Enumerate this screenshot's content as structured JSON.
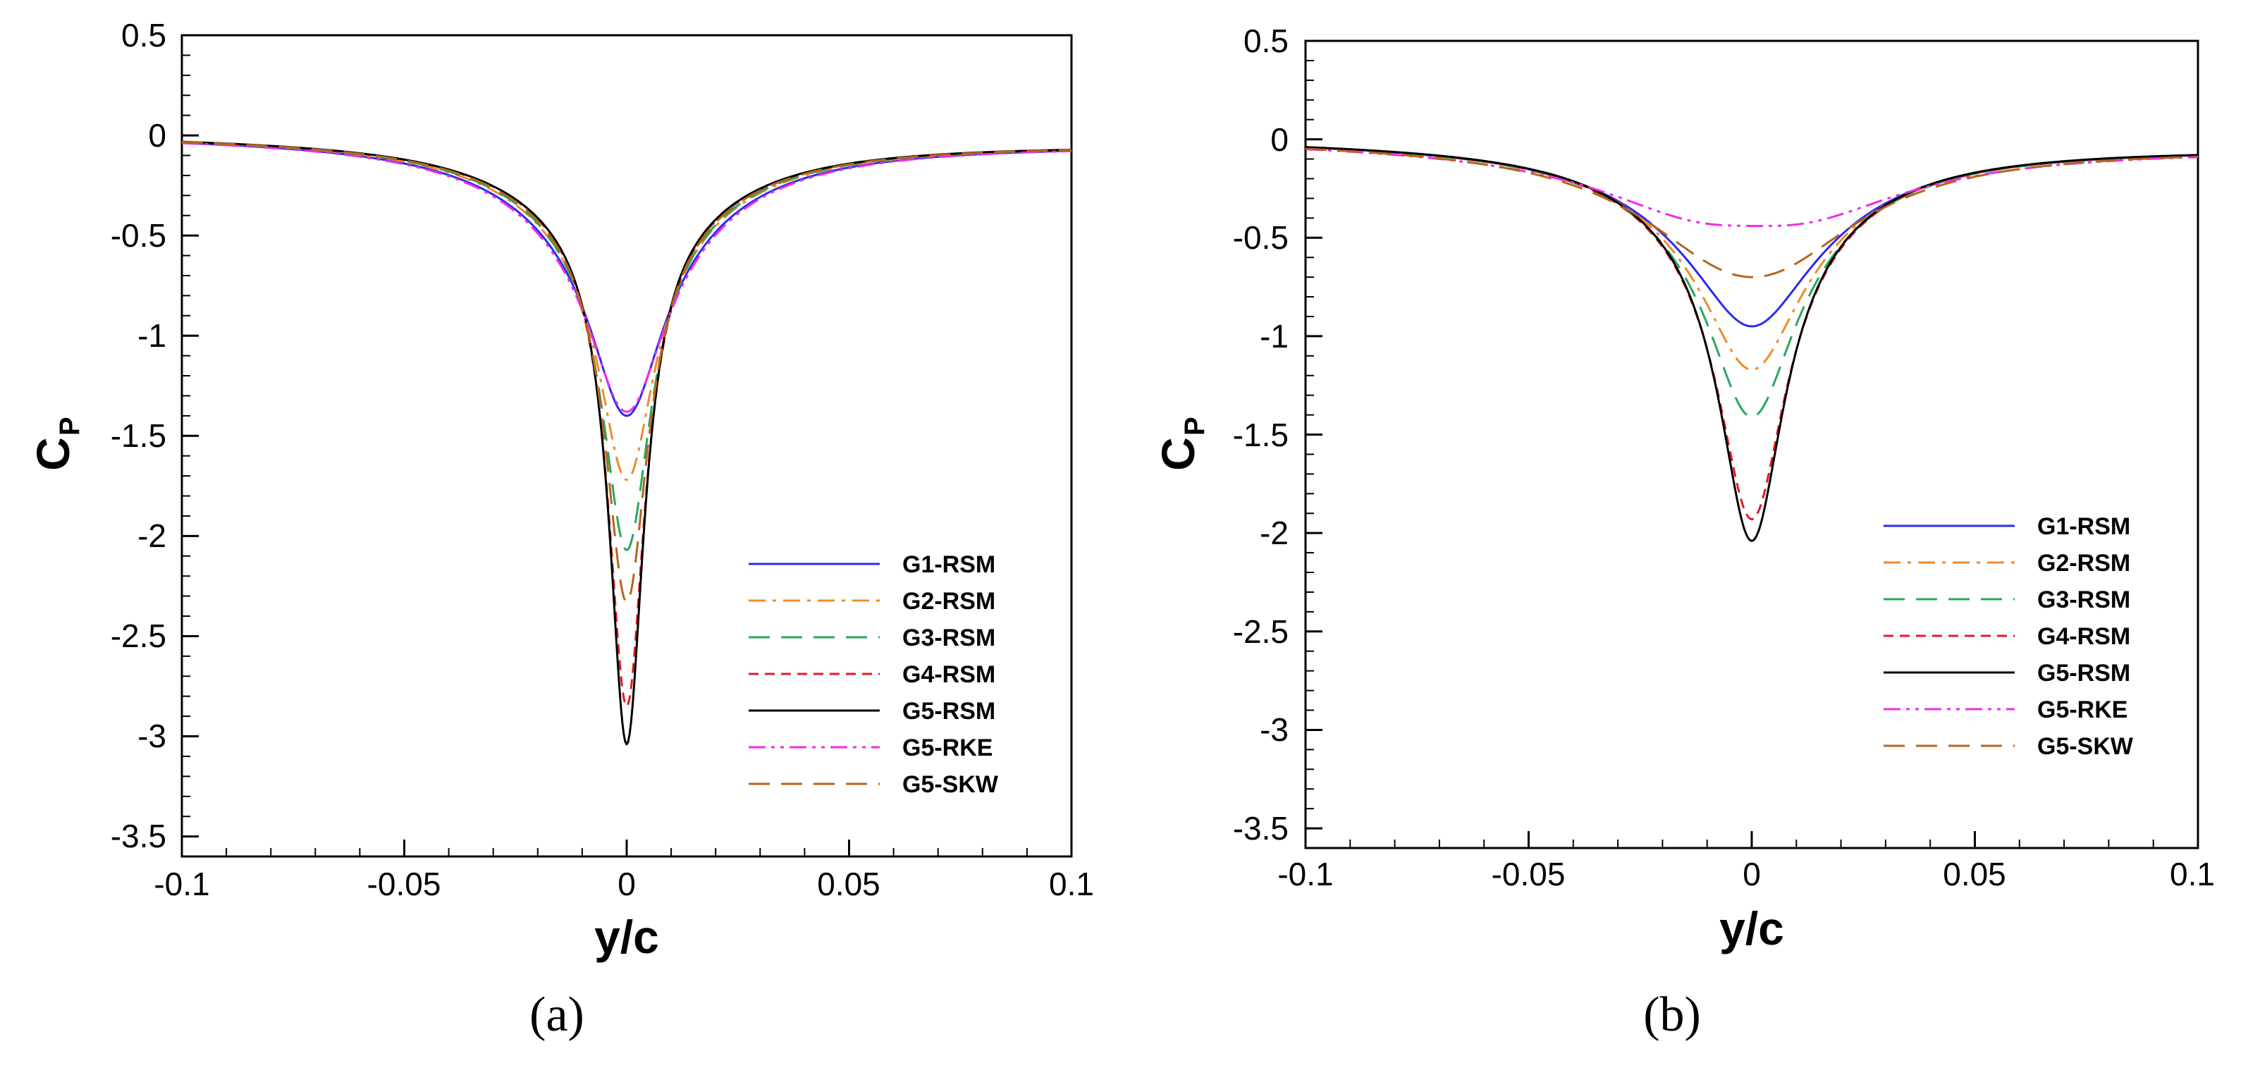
{
  "figure": {
    "panels": [
      {
        "label": "(a)",
        "xlabel": "y/c",
        "ylabel_main": "C",
        "ylabel_sub": "P"
      },
      {
        "label": "(b)",
        "xlabel": "y/c",
        "ylabel_main": "C",
        "ylabel_sub": "P"
      }
    ]
  },
  "chart_data": [
    {
      "type": "line",
      "panel": "(a)",
      "title": "",
      "xlabel": "y/c",
      "ylabel": "CP",
      "xlim": [
        -0.1,
        0.1
      ],
      "ylim": [
        -3.6,
        0.5
      ],
      "xticks": [
        -0.1,
        -0.05,
        0,
        0.05,
        0.1
      ],
      "xtick_labels": [
        "-0.1",
        "-0.05",
        "0",
        "0.05",
        "0.1"
      ],
      "yticks": [
        0.5,
        0,
        -0.5,
        -1,
        -1.5,
        -2,
        -2.5,
        -3,
        -3.5
      ],
      "ytick_labels": [
        "0.5",
        "0",
        "-0.5",
        "-1",
        "-1.5",
        "-2",
        "-2.5",
        "-3",
        "-3.5"
      ],
      "legend_position": "lower-right",
      "series": [
        {
          "name": "G1-RSM",
          "color": "#2b2bef",
          "dash": "solid",
          "min": -1.38,
          "width": 0.0095
        },
        {
          "name": "G2-RSM",
          "color": "#f08a2c",
          "dash": "dashdot",
          "min": -1.7,
          "width": 0.0075
        },
        {
          "name": "G3-RSM",
          "color": "#27a85d",
          "dash": "longdash",
          "min": -2.05,
          "width": 0.0065
        },
        {
          "name": "G4-RSM",
          "color": "#e31b23",
          "dash": "dashed",
          "min": -2.83,
          "width": 0.005
        },
        {
          "name": "G5-RSM",
          "color": "#000000",
          "dash": "solid",
          "min": -3.02,
          "width": 0.0047
        },
        {
          "name": "G5-RKE",
          "color": "#ef2be7",
          "dash": "dashdotdot",
          "min": -1.36,
          "width": 0.01
        },
        {
          "name": "G5-SKW",
          "color": "#b5651d",
          "dash": "longdash",
          "min": -2.31,
          "width": 0.0058
        }
      ]
    },
    {
      "type": "line",
      "panel": "(b)",
      "title": "",
      "xlabel": "y/c",
      "ylabel": "CP",
      "xlim": [
        -0.1,
        0.1
      ],
      "ylim": [
        -3.6,
        0.5
      ],
      "xticks": [
        -0.1,
        -0.05,
        0,
        0.05,
        0.1
      ],
      "xtick_labels": [
        "-0.1",
        "-0.05",
        "0",
        "0.05",
        "0.1"
      ],
      "yticks": [
        0.5,
        0,
        -0.5,
        -1,
        -1.5,
        -2,
        -2.5,
        -3,
        -3.5
      ],
      "ytick_labels": [
        "0.5",
        "0",
        "-0.5",
        "-1",
        "-1.5",
        "-2",
        "-2.5",
        "-3",
        "-3.5"
      ],
      "legend_position": "lower-right",
      "series": [
        {
          "name": "G1-RSM",
          "color": "#2b2bef",
          "dash": "solid",
          "min": -0.93,
          "width": 0.0135
        },
        {
          "name": "G2-RSM",
          "color": "#f08a2c",
          "dash": "dashdot",
          "min": -1.15,
          "width": 0.012
        },
        {
          "name": "G3-RSM",
          "color": "#27a85d",
          "dash": "longdash",
          "min": -1.39,
          "width": 0.011
        },
        {
          "name": "G4-RSM",
          "color": "#e31b23",
          "dash": "dashed",
          "min": -1.91,
          "width": 0.009
        },
        {
          "name": "G5-RSM",
          "color": "#000000",
          "dash": "solid",
          "min": -2.02,
          "width": 0.0085
        },
        {
          "name": "G5-RKE",
          "color": "#ef2be7",
          "dash": "dashdotdot",
          "min": -0.42,
          "width": 0.026
        },
        {
          "name": "G5-SKW",
          "color": "#b5651d",
          "dash": "longdash",
          "min": -0.68,
          "width": 0.019
        }
      ]
    }
  ]
}
